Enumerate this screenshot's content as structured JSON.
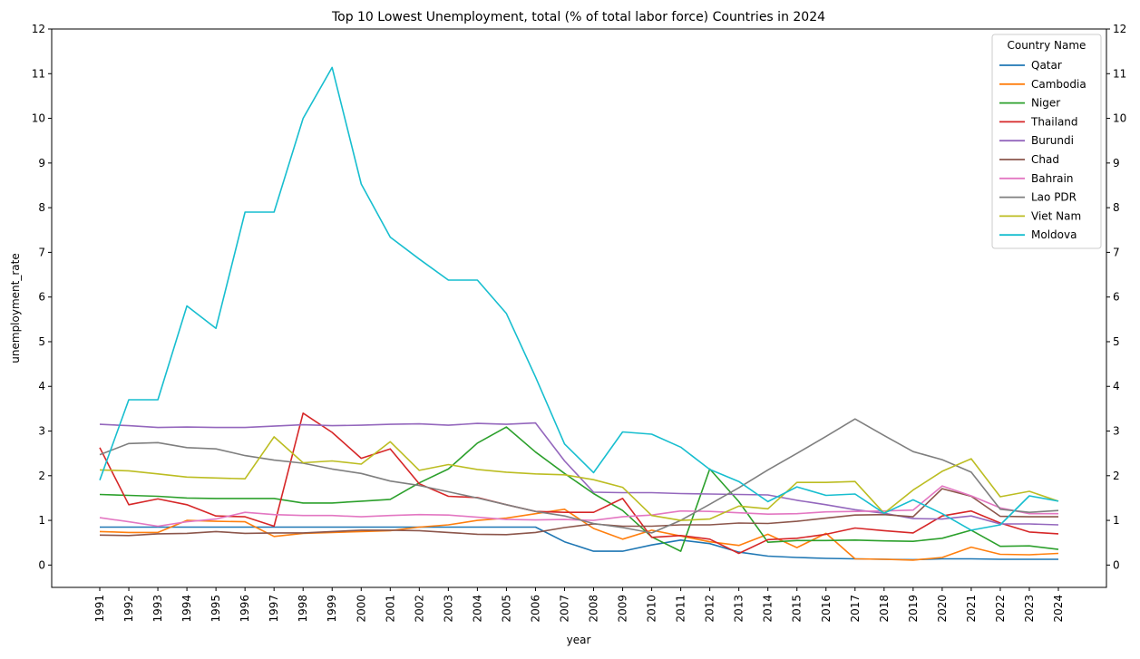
{
  "chart_data": {
    "type": "line",
    "title": "Top 10 Lowest Unemployment, total (% of total labor force) Countries in 2024",
    "xlabel": "year",
    "ylabel": "unemployment_rate",
    "ylim": [
      -0.5,
      12
    ],
    "yticks": [
      0,
      1,
      2,
      3,
      4,
      5,
      6,
      7,
      8,
      9,
      10,
      11,
      12
    ],
    "grid": false,
    "legend": {
      "title": "Country Name",
      "placement": "top-right"
    },
    "x": [
      "1991",
      "1992",
      "1993",
      "1994",
      "1995",
      "1996",
      "1997",
      "1998",
      "1999",
      "2000",
      "2001",
      "2002",
      "2003",
      "2004",
      "2005",
      "2006",
      "2007",
      "2008",
      "2009",
      "2010",
      "2011",
      "2012",
      "2013",
      "2014",
      "2015",
      "2016",
      "2017",
      "2018",
      "2019",
      "2020",
      "2021",
      "2022",
      "2023",
      "2024"
    ],
    "series": [
      {
        "name": "Qatar",
        "color": "#1f77b4",
        "values": [
          0.85,
          0.85,
          0.85,
          0.85,
          0.85,
          0.85,
          0.85,
          0.85,
          0.85,
          0.85,
          0.85,
          0.85,
          0.85,
          0.85,
          0.85,
          0.85,
          0.52,
          0.31,
          0.31,
          0.45,
          0.56,
          0.48,
          0.29,
          0.2,
          0.17,
          0.15,
          0.14,
          0.13,
          0.12,
          0.14,
          0.14,
          0.13,
          0.13,
          0.13
        ]
      },
      {
        "name": "Cambodia",
        "color": "#ff7f0e",
        "values": [
          0.75,
          0.73,
          0.73,
          1.0,
          0.98,
          0.97,
          0.64,
          0.71,
          0.73,
          0.75,
          0.77,
          0.85,
          0.9,
          1.0,
          1.05,
          1.15,
          1.25,
          0.82,
          0.58,
          0.78,
          0.65,
          0.52,
          0.44,
          0.69,
          0.39,
          0.71,
          0.14,
          0.13,
          0.11,
          0.17,
          0.4,
          0.24,
          0.23,
          0.26
        ]
      },
      {
        "name": "Niger",
        "color": "#2ca02c",
        "values": [
          1.58,
          1.56,
          1.54,
          1.5,
          1.49,
          1.49,
          1.49,
          1.39,
          1.39,
          1.43,
          1.47,
          1.84,
          2.15,
          2.73,
          3.09,
          2.53,
          2.05,
          1.6,
          1.22,
          0.63,
          0.31,
          2.15,
          1.42,
          0.51,
          0.55,
          0.55,
          0.56,
          0.54,
          0.53,
          0.6,
          0.78,
          0.42,
          0.43,
          0.35
        ]
      },
      {
        "name": "Thailand",
        "color": "#d62728",
        "values": [
          2.63,
          1.35,
          1.48,
          1.35,
          1.1,
          1.08,
          0.87,
          3.4,
          2.97,
          2.39,
          2.6,
          1.82,
          1.54,
          1.51,
          1.35,
          1.2,
          1.18,
          1.18,
          1.49,
          0.62,
          0.66,
          0.58,
          0.26,
          0.57,
          0.6,
          0.69,
          0.83,
          0.77,
          0.72,
          1.1,
          1.21,
          0.94,
          0.74,
          0.7
        ]
      },
      {
        "name": "Burundi",
        "color": "#9467bd",
        "values": [
          3.15,
          3.12,
          3.08,
          3.09,
          3.08,
          3.08,
          3.11,
          3.14,
          3.12,
          3.13,
          3.15,
          3.16,
          3.13,
          3.17,
          3.15,
          3.18,
          2.33,
          1.63,
          1.62,
          1.62,
          1.6,
          1.59,
          1.58,
          1.57,
          1.45,
          1.35,
          1.24,
          1.16,
          1.04,
          1.03,
          1.1,
          0.92,
          0.92,
          0.9
        ]
      },
      {
        "name": "Chad",
        "color": "#8c564b",
        "values": [
          0.67,
          0.66,
          0.7,
          0.71,
          0.75,
          0.71,
          0.72,
          0.72,
          0.75,
          0.78,
          0.78,
          0.77,
          0.73,
          0.69,
          0.68,
          0.73,
          0.84,
          0.92,
          0.87,
          0.87,
          0.9,
          0.9,
          0.94,
          0.93,
          0.98,
          1.05,
          1.12,
          1.13,
          1.08,
          1.71,
          1.54,
          1.09,
          1.08,
          1.08
        ]
      },
      {
        "name": "Bahrain",
        "color": "#e377c2",
        "values": [
          1.06,
          0.97,
          0.87,
          0.97,
          1.03,
          1.18,
          1.13,
          1.11,
          1.11,
          1.08,
          1.11,
          1.13,
          1.12,
          1.07,
          1.02,
          1.01,
          1.02,
          1.0,
          1.08,
          1.12,
          1.21,
          1.2,
          1.17,
          1.14,
          1.15,
          1.19,
          1.2,
          1.21,
          1.23,
          1.77,
          1.55,
          1.28,
          1.15,
          1.15
        ]
      },
      {
        "name": "Lao PDR",
        "color": "#7f7f7f",
        "values": [
          2.47,
          2.72,
          2.74,
          2.63,
          2.6,
          2.45,
          2.35,
          2.28,
          2.15,
          2.05,
          1.88,
          1.78,
          1.64,
          1.5,
          1.35,
          1.2,
          1.1,
          0.93,
          0.84,
          0.72,
          1.0,
          1.36,
          1.73,
          2.13,
          2.5,
          2.88,
          3.27,
          2.9,
          2.54,
          2.36,
          2.08,
          1.25,
          1.18,
          1.22
        ]
      },
      {
        "name": "Viet Nam",
        "color": "#bcbd22",
        "values": [
          2.13,
          2.11,
          2.04,
          1.97,
          1.95,
          1.93,
          2.87,
          2.29,
          2.33,
          2.26,
          2.76,
          2.12,
          2.25,
          2.14,
          2.08,
          2.04,
          2.02,
          1.91,
          1.74,
          1.11,
          1.0,
          1.03,
          1.32,
          1.26,
          1.85,
          1.85,
          1.87,
          1.16,
          1.68,
          2.1,
          2.38,
          1.53,
          1.65,
          1.43
        ]
      },
      {
        "name": "Moldova",
        "color": "#17becf",
        "values": [
          1.9,
          3.7,
          3.7,
          5.8,
          5.3,
          7.9,
          7.9,
          10.0,
          11.14,
          8.53,
          7.34,
          6.85,
          6.38,
          6.38,
          5.63,
          4.21,
          2.71,
          2.07,
          2.98,
          2.93,
          2.64,
          2.14,
          1.87,
          1.42,
          1.75,
          1.56,
          1.59,
          1.16,
          1.46,
          1.15,
          0.78,
          0.9,
          1.55,
          1.43
        ]
      }
    ]
  }
}
